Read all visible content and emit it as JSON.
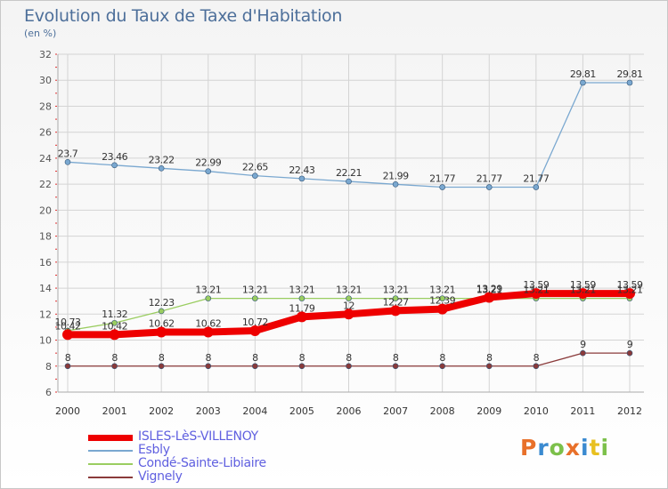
{
  "header": {
    "title": "Evolution du Taux de Taxe d'Habitation",
    "subtitle": "(en %)"
  },
  "logo": {
    "text": "Proxiti",
    "letters": [
      {
        "ch": "P",
        "color": "#e8702a"
      },
      {
        "ch": "r",
        "color": "#3a8ad0"
      },
      {
        "ch": "o",
        "color": "#7cc04a"
      },
      {
        "ch": "x",
        "color": "#e8702a"
      },
      {
        "ch": "i",
        "color": "#3a8ad0"
      },
      {
        "ch": "t",
        "color": "#e8c020"
      },
      {
        "ch": "i",
        "color": "#7cc04a"
      }
    ]
  },
  "chart_data": {
    "type": "line",
    "title": "Evolution du Taux de Taxe d'Habitation",
    "subtitle": "(en %)",
    "x": [
      "2000",
      "2001",
      "2002",
      "2003",
      "2004",
      "2005",
      "2006",
      "2007",
      "2008",
      "2009",
      "2010",
      "2011",
      "2012"
    ],
    "ylim": [
      6,
      32
    ],
    "yticks": [
      6,
      8,
      10,
      12,
      14,
      16,
      18,
      20,
      22,
      24,
      26,
      28,
      30,
      32
    ],
    "grid": true,
    "legend_position": "bottom-left",
    "series": [
      {
        "name": "ISLES-LèS-VILLENOY",
        "color": "#ee0000",
        "values": [
          10.42,
          10.42,
          10.62,
          10.62,
          10.72,
          11.79,
          12,
          12.27,
          12.39,
          13.29,
          13.59,
          13.59,
          13.59
        ],
        "labels": [
          "10.42",
          "10.42",
          "10.62",
          "10.62",
          "10.72",
          "11.79",
          "12",
          "12.27",
          "12.39",
          "13.29",
          "13.59",
          "13.59",
          "13.59"
        ]
      },
      {
        "name": "Esbly",
        "color": "#7aa8d0",
        "values": [
          23.7,
          23.46,
          23.22,
          22.99,
          22.65,
          22.43,
          22.21,
          21.99,
          21.77,
          21.77,
          21.77,
          29.81,
          29.81
        ],
        "labels": [
          "23.7",
          "23.46",
          "23.22",
          "22.99",
          "22.65",
          "22.43",
          "22.21",
          "21.99",
          "21.77",
          "21.77",
          "21.77",
          "29.81",
          "29.81"
        ]
      },
      {
        "name": "Condé-Sainte-Libiaire",
        "color": "#9acd60",
        "values": [
          10.73,
          11.32,
          12.23,
          13.21,
          13.21,
          13.21,
          13.21,
          13.21,
          13.21,
          13.21,
          13.21,
          13.21,
          13.21
        ],
        "labels": [
          "10.73",
          "11.32",
          "12.23",
          "13.21",
          "13.21",
          "13.21",
          "13.21",
          "13.21",
          "13.21",
          "13.21",
          "13.21",
          "13.21",
          "13.21"
        ]
      },
      {
        "name": "Vignely",
        "color": "#8a3a3a",
        "values": [
          8,
          8,
          8,
          8,
          8,
          8,
          8,
          8,
          8,
          8,
          8,
          9,
          9
        ],
        "labels": [
          "8",
          "8",
          "8",
          "8",
          "8",
          "8",
          "8",
          "8",
          "8",
          "8",
          "8",
          "9",
          "9"
        ]
      }
    ]
  }
}
